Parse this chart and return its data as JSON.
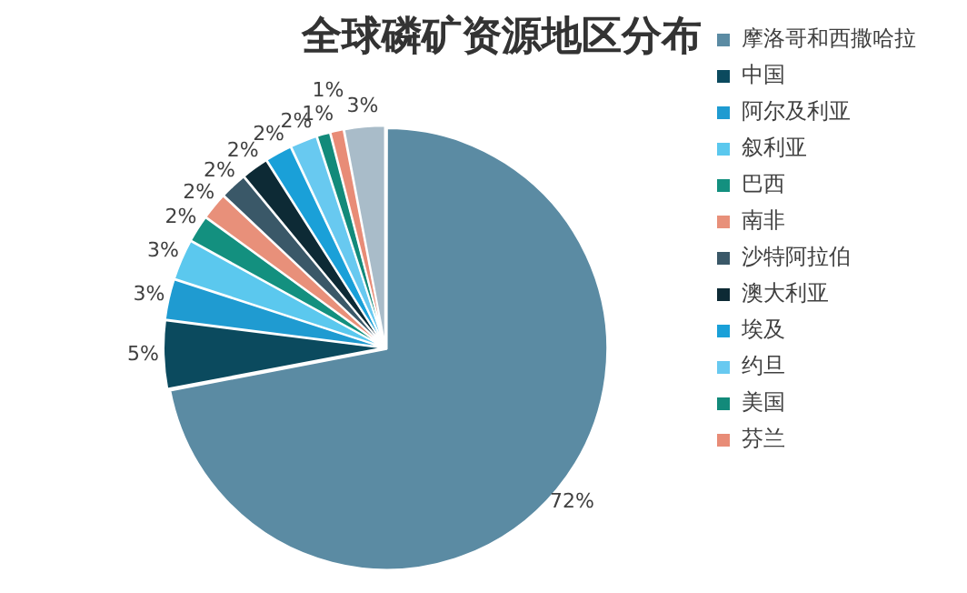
{
  "chart_data": {
    "type": "pie",
    "title": "全球磷矿资源地区分布",
    "categories": [
      "摩洛哥和西撒哈拉",
      "中国",
      "阿尔及利亚",
      "叙利亚",
      "巴西",
      "南非",
      "沙特阿拉伯",
      "澳大利亚",
      "埃及",
      "约旦",
      "美国",
      "芬兰",
      null
    ],
    "values": [
      72,
      5,
      3,
      3,
      2,
      2,
      2,
      2,
      2,
      2,
      1,
      1,
      3
    ],
    "value_labels": [
      "72%",
      "5%",
      "3%",
      "3%",
      "2%",
      "2%",
      "2%",
      "2%",
      "2%",
      "2%",
      "1%",
      "1%",
      "3%"
    ],
    "colors": [
      "#5b8ba3",
      "#0b4a5e",
      "#1f9bd1",
      "#5bc8ee",
      "#13907f",
      "#e8907a",
      "#3a5868",
      "#0d2a35",
      "#1aa0d8",
      "#68c9f0",
      "#128a7a",
      "#e88c77",
      "#a9bcc9"
    ],
    "legend": "right"
  }
}
